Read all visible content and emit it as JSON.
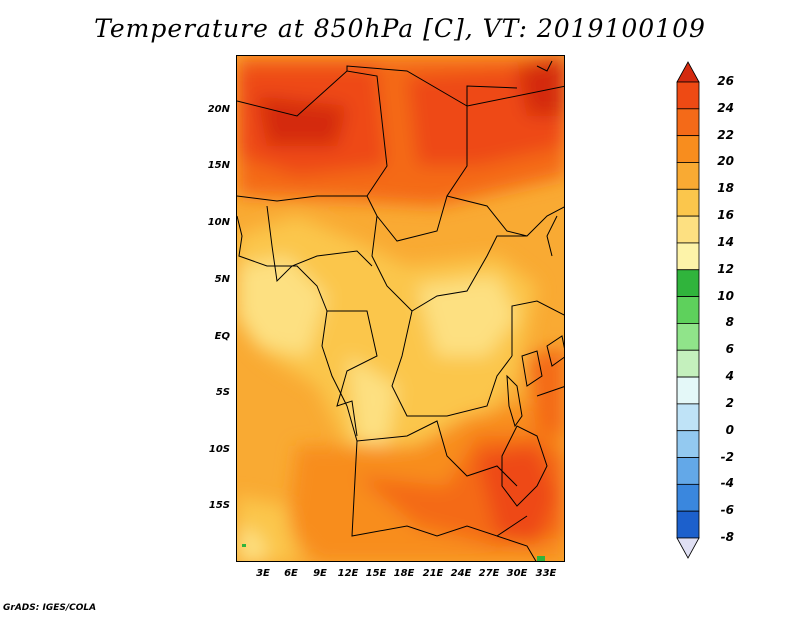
{
  "title": "Temperature at 850hPa [C], VT: 2019100109",
  "credit": "GrADS: IGES/COLA",
  "map": {
    "lat_labels": [
      "20N",
      "15N",
      "10N",
      "5N",
      "EQ",
      "5S",
      "10S",
      "15S"
    ],
    "lat_values": [
      20,
      15,
      10,
      5,
      0,
      -5,
      -10,
      -15
    ],
    "lon_labels": [
      "3E",
      "6E",
      "9E",
      "12E",
      "15E",
      "18E",
      "21E",
      "24E",
      "27E",
      "30E",
      "33E"
    ],
    "lon_values": [
      3,
      6,
      9,
      12,
      15,
      18,
      21,
      24,
      27,
      30,
      33
    ],
    "lon_range": [
      0,
      35
    ],
    "lat_range": [
      -20,
      25
    ]
  },
  "colorbar": {
    "levels": [
      26,
      24,
      22,
      20,
      18,
      16,
      14,
      12,
      10,
      8,
      6,
      4,
      2,
      0,
      -2,
      -4,
      -6,
      -8
    ],
    "colors": [
      "#d42a0f",
      "#ee4a14",
      "#f46a18",
      "#f88d1e",
      "#f9aa33",
      "#fbc64c",
      "#fde081",
      "#fdf3a9",
      "#30b43c",
      "#5ed15c",
      "#90e48a",
      "#c4f0bd",
      "#e4f8f8",
      "#bfe3f7",
      "#93c9f0",
      "#63a8e8",
      "#3a87de",
      "#1c60cc",
      "#1240a8",
      "#0b2580"
    ],
    "top_color": "#d42a0f",
    "bottom_color": "#e0e0f4"
  }
}
